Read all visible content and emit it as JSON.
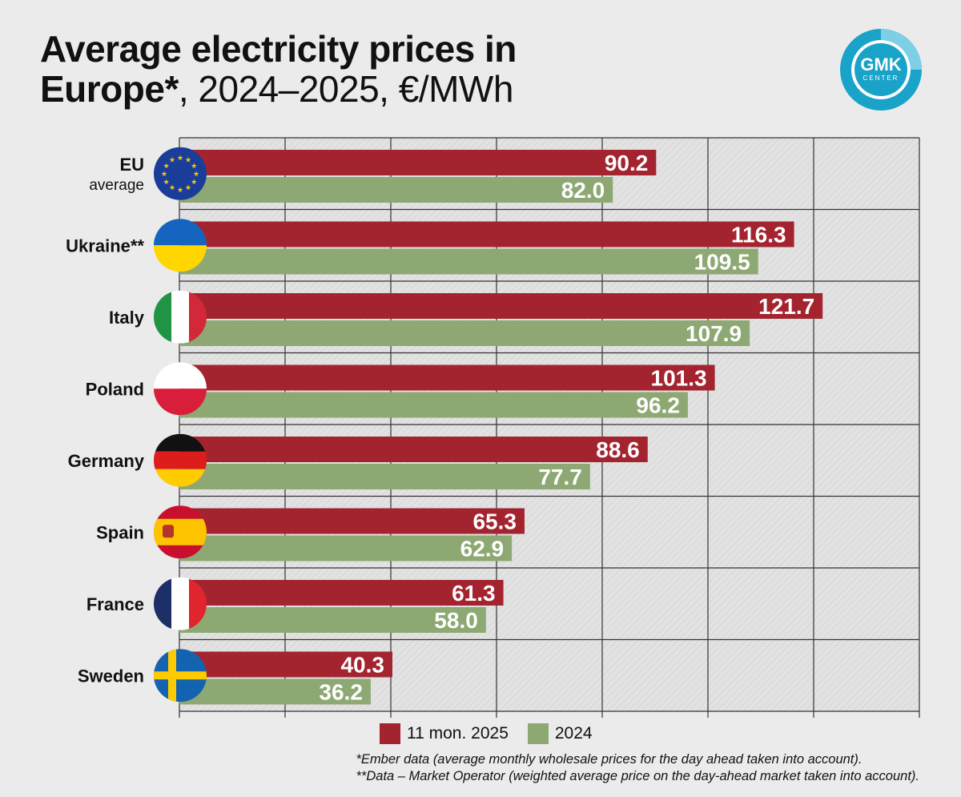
{
  "title": {
    "line1_bold": "Average electricity prices in",
    "line2_bold": "Europe*",
    "line2_rest": ", 2024–2025, €/MWh"
  },
  "logo": {
    "text_top": "GMK",
    "text_bottom": "CENTER",
    "color": "#1aa3c9"
  },
  "colors": {
    "series_2025": "#a3242f",
    "series_2024": "#8ea873",
    "grid": "#333333"
  },
  "chart_data": {
    "type": "bar",
    "orientation": "horizontal",
    "categories": [
      {
        "label": "EU",
        "sublabel": "average",
        "flag": "eu-flag"
      },
      {
        "label": "Ukraine**",
        "flag": "ukraine-flag"
      },
      {
        "label": "Italy",
        "flag": "italy-flag"
      },
      {
        "label": "Poland",
        "flag": "poland-flag"
      },
      {
        "label": "Germany",
        "flag": "germany-flag"
      },
      {
        "label": "Spain",
        "flag": "spain-flag"
      },
      {
        "label": "France",
        "flag": "france-flag"
      },
      {
        "label": "Sweden",
        "flag": "sweden-flag"
      }
    ],
    "series": [
      {
        "name": "11 mon. 2025",
        "color": "#a3242f",
        "values": [
          90.2,
          116.3,
          121.7,
          101.3,
          88.6,
          65.3,
          61.3,
          40.3
        ],
        "labels": [
          "90.2",
          "116.3",
          "121.7",
          "101.3",
          "88.6",
          "65.3",
          "61.3",
          "40.3"
        ]
      },
      {
        "name": "2024",
        "color": "#8ea873",
        "values": [
          82.0,
          109.5,
          107.9,
          96.2,
          77.7,
          62.9,
          58.0,
          36.2
        ],
        "labels": [
          "82.0",
          "109.5",
          "107.9",
          "96.2",
          "77.7",
          "62.9",
          "58.0",
          "36.2"
        ]
      }
    ],
    "xlim": [
      0,
      140
    ],
    "grid": true,
    "legend_position": "bottom"
  },
  "legend": {
    "item_2025": "11 mon. 2025",
    "item_2024": "2024"
  },
  "notes": {
    "line1": "*Ember data (average monthly wholesale prices for the day ahead taken into account).",
    "line2": "**Data – Market Operator (weighted average price on the day-ahead market taken into account)."
  }
}
